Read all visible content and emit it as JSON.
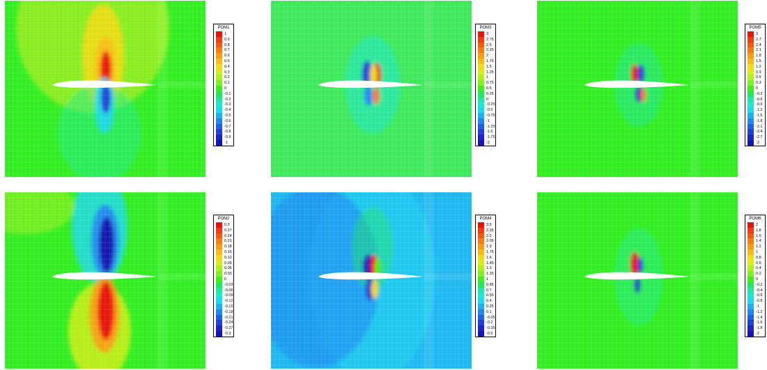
{
  "panels": [
    {
      "id": "pom1",
      "legend_title": "POM1",
      "levels": [
        "1",
        "0.9",
        "0.8",
        "0.7",
        "0.6",
        "0.5",
        "0.4",
        "0.3",
        "0.2",
        "0.1",
        "0",
        "-0.1",
        "-0.2",
        "-0.3",
        "-0.4",
        "-0.5",
        "-0.6",
        "-0.7",
        "-0.8",
        "-0.9",
        "-1"
      ],
      "background": "#33ee22",
      "pattern": "pom1"
    },
    {
      "id": "pom3",
      "legend_title": "POM3",
      "levels": [
        "3",
        "2.75",
        "2.5",
        "2.25",
        "2",
        "1.75",
        "1.5",
        "1.25",
        "1",
        "0.75",
        "0.5",
        "0.25",
        "0",
        "-0.25",
        "-0.5",
        "-0.75",
        "-1",
        "-1.25",
        "-1.5",
        "-1.75",
        "-2"
      ],
      "background": "#3ee85a",
      "pattern": "pom3"
    },
    {
      "id": "pom5",
      "legend_title": "POM5",
      "levels": [
        "3",
        "2.7",
        "2.4",
        "2.1",
        "1.8",
        "1.5",
        "1.2",
        "0.9",
        "0.6",
        "0.3",
        "0",
        "-0.3",
        "-0.6",
        "-0.9",
        "-1.2",
        "-1.5",
        "-1.8",
        "-2.1",
        "-2.4",
        "-2.7",
        "-3"
      ],
      "background": "#33ee22",
      "pattern": "pom5"
    },
    {
      "id": "pom2",
      "legend_title": "POM2",
      "levels": [
        "0.3",
        "0.27",
        "0.24",
        "0.21",
        "0.18",
        "0.15",
        "0.12",
        "0.09",
        "0.06",
        "0.03",
        "0",
        "-0.03",
        "-0.06",
        "-0.09",
        "-0.12",
        "-0.15",
        "-0.18",
        "-0.21",
        "-0.24",
        "-0.27",
        "-0.3"
      ],
      "background": "#33ee22",
      "pattern": "pom2"
    },
    {
      "id": "pom4",
      "legend_title": "POM4",
      "levels": [
        "2.5",
        "2.35",
        "2.2",
        "2.05",
        "1.9",
        "1.75",
        "1.6",
        "1.45",
        "1.3",
        "1.15",
        "1",
        "0.85",
        "0.7",
        "0.55",
        "0.4",
        "0.25",
        "0.1",
        "-0.05",
        "-0.2",
        "-0.35",
        "-0.5"
      ],
      "background": "#1fb8f0",
      "pattern": "pom4"
    },
    {
      "id": "pom6",
      "legend_title": "POM6",
      "levels": [
        "2",
        "1.8",
        "1.6",
        "1.4",
        "1.2",
        "1",
        "0.8",
        "0.6",
        "0.4",
        "0.2",
        "0",
        "-0.2",
        "-0.4",
        "-0.6",
        "-0.8",
        "-1",
        "-1.2",
        "-1.4",
        "-1.6",
        "-1.8",
        "-2"
      ],
      "background": "#33ee22",
      "pattern": "pom6"
    }
  ],
  "colormap": [
    "#e8140a",
    "#f03c10",
    "#f55a12",
    "#f87c14",
    "#f99c16",
    "#f8bc18",
    "#f0dc1a",
    "#d8ee1c",
    "#b0f01e",
    "#80f020",
    "#44ec22",
    "#22e860",
    "#20e8a0",
    "#20e8d0",
    "#20d8f0",
    "#20b0f0",
    "#2088f0",
    "#2060e8",
    "#2040d8",
    "#2024c8",
    "#1414b0"
  ]
}
